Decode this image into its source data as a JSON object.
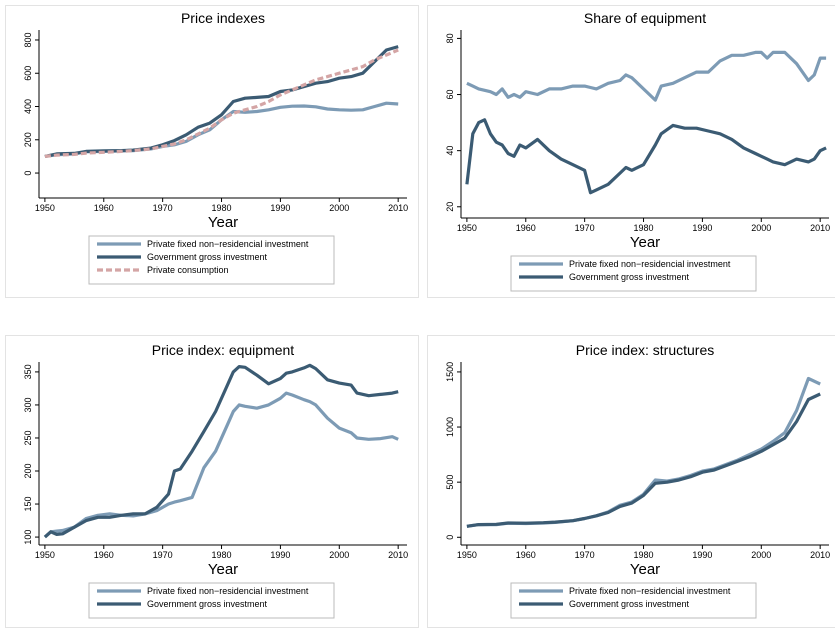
{
  "chart_data": [
    {
      "type": "line",
      "title": "Price indexes",
      "xlabel": "Year",
      "x": [
        1950,
        1952,
        1955,
        1957,
        1960,
        1963,
        1965,
        1968,
        1970,
        1972,
        1974,
        1976,
        1978,
        1980,
        1982,
        1984,
        1986,
        1988,
        1990,
        1992,
        1994,
        1996,
        1998,
        2000,
        2002,
        2004,
        2006,
        2008,
        2010
      ],
      "series": [
        {
          "name": "Private fixed non−residencial investment",
          "color": "#7d9bb5",
          "values": [
            100,
            110,
            115,
            128,
            130,
            133,
            135,
            145,
            160,
            170,
            190,
            230,
            260,
            320,
            370,
            365,
            370,
            380,
            395,
            402,
            403,
            398,
            385,
            380,
            378,
            380,
            400,
            420,
            415
          ]
        },
        {
          "name": "Government gross investment",
          "color": "#3b5b73",
          "values": [
            100,
            115,
            118,
            130,
            133,
            135,
            138,
            150,
            170,
            195,
            230,
            275,
            300,
            350,
            430,
            450,
            455,
            460,
            490,
            500,
            520,
            540,
            550,
            570,
            580,
            600,
            670,
            740,
            760
          ]
        },
        {
          "name": "Private consumption",
          "color": "#d4a5a5",
          "dash": true,
          "values": [
            100,
            108,
            112,
            120,
            125,
            130,
            135,
            145,
            160,
            175,
            200,
            235,
            270,
            320,
            360,
            380,
            400,
            430,
            470,
            500,
            530,
            560,
            580,
            600,
            620,
            640,
            680,
            710,
            740
          ]
        }
      ],
      "xlim": [
        1949,
        2011.5
      ],
      "xticks": [
        1950,
        1960,
        1970,
        1980,
        1990,
        2000,
        2010
      ],
      "ylim": [
        -150,
        860
      ],
      "yticks": [
        0,
        200,
        400,
        600,
        800
      ]
    },
    {
      "type": "line",
      "title": "Share of equipment",
      "xlabel": "Year",
      "x": [
        1950,
        1951,
        1952,
        1953,
        1954,
        1955,
        1956,
        1957,
        1958,
        1959,
        1960,
        1962,
        1964,
        1966,
        1968,
        1970,
        1971,
        1972,
        1974,
        1976,
        1977,
        1978,
        1980,
        1982,
        1983,
        1985,
        1987,
        1989,
        1991,
        1993,
        1995,
        1997,
        1999,
        2000,
        2001,
        2002,
        2004,
        2006,
        2008,
        2009,
        2010,
        2011
      ],
      "series": [
        {
          "name": "Private fixed non−residencial investment",
          "color": "#7d9bb5",
          "values": [
            64,
            63,
            62,
            61.5,
            61,
            60,
            62,
            59,
            60,
            59,
            61,
            60,
            62,
            62,
            63,
            63,
            62.5,
            62,
            64,
            65,
            67,
            66,
            62,
            58,
            63,
            64,
            66,
            68,
            68,
            72,
            74,
            74,
            75,
            75,
            73,
            75,
            75,
            71,
            65,
            67,
            73,
            73
          ]
        },
        {
          "name": "Government gross investment",
          "color": "#3b5b73",
          "values": [
            28,
            46,
            50,
            51,
            46,
            43,
            42,
            39,
            38,
            42,
            41,
            44,
            40,
            37,
            35,
            33,
            25,
            26,
            28,
            32,
            34,
            33,
            35,
            42,
            46,
            49,
            48,
            48,
            47,
            46,
            44,
            41,
            39,
            38,
            37,
            36,
            35,
            37,
            36,
            37,
            40,
            41
          ]
        }
      ],
      "xlim": [
        1949,
        2011.5
      ],
      "xticks": [
        1950,
        1960,
        1970,
        1980,
        1990,
        2000,
        2010
      ],
      "ylim": [
        16,
        83
      ],
      "yticks": [
        20,
        40,
        60,
        80
      ]
    },
    {
      "type": "line",
      "title": "Price index: equipment",
      "xlabel": "Year",
      "x": [
        1950,
        1951,
        1952,
        1953,
        1955,
        1957,
        1959,
        1961,
        1963,
        1965,
        1967,
        1969,
        1971,
        1972,
        1973,
        1975,
        1977,
        1979,
        1981,
        1982,
        1983,
        1984,
        1986,
        1988,
        1990,
        1991,
        1992,
        1994,
        1995,
        1996,
        1998,
        2000,
        2002,
        2003,
        2005,
        2007,
        2009,
        2010
      ],
      "series": [
        {
          "name": "Private fixed non−residencial investment",
          "color": "#7d9bb5",
          "values": [
            100,
            108,
            109,
            110,
            115,
            128,
            133,
            135,
            133,
            132,
            135,
            140,
            150,
            153,
            155,
            160,
            205,
            230,
            270,
            290,
            300,
            298,
            295,
            300,
            310,
            318,
            315,
            308,
            305,
            300,
            280,
            265,
            258,
            250,
            248,
            249,
            252,
            248
          ]
        },
        {
          "name": "Government gross investment",
          "color": "#3b5b73",
          "values": [
            100,
            108,
            104,
            105,
            115,
            125,
            130,
            130,
            133,
            135,
            135,
            145,
            165,
            200,
            203,
            230,
            260,
            290,
            330,
            350,
            358,
            357,
            345,
            332,
            340,
            348,
            350,
            356,
            360,
            355,
            338,
            333,
            330,
            318,
            314,
            316,
            318,
            320
          ]
        }
      ],
      "xlim": [
        1949,
        2011.5
      ],
      "xticks": [
        1950,
        1960,
        1970,
        1980,
        1990,
        2000,
        2010
      ],
      "ylim": [
        88,
        365
      ],
      "yticks": [
        100,
        150,
        200,
        250,
        300,
        350
      ]
    },
    {
      "type": "line",
      "title": "Price index: structures",
      "xlabel": "Year",
      "x": [
        1950,
        1952,
        1955,
        1957,
        1960,
        1963,
        1965,
        1968,
        1970,
        1972,
        1974,
        1976,
        1978,
        1980,
        1982,
        1984,
        1986,
        1988,
        1990,
        1992,
        1994,
        1996,
        1998,
        2000,
        2002,
        2004,
        2006,
        2008,
        2010
      ],
      "series": [
        {
          "name": "Private fixed non−residencial investment",
          "color": "#7d9bb5",
          "values": [
            100,
            115,
            115,
            128,
            125,
            130,
            135,
            150,
            170,
            195,
            230,
            290,
            320,
            390,
            520,
            510,
            530,
            560,
            600,
            620,
            660,
            700,
            750,
            800,
            870,
            950,
            1150,
            1440,
            1390
          ]
        },
        {
          "name": "Government gross investment",
          "color": "#3b5b73",
          "values": [
            100,
            115,
            118,
            130,
            128,
            132,
            138,
            150,
            170,
            195,
            225,
            280,
            310,
            380,
            490,
            500,
            520,
            550,
            590,
            610,
            650,
            690,
            730,
            780,
            840,
            900,
            1050,
            1250,
            1300
          ]
        }
      ],
      "xlim": [
        1949,
        2011.5
      ],
      "xticks": [
        1950,
        1960,
        1970,
        1980,
        1990,
        2000,
        2010
      ],
      "ylim": [
        -70,
        1590
      ],
      "yticks": [
        0,
        500,
        1000,
        1500
      ]
    }
  ]
}
